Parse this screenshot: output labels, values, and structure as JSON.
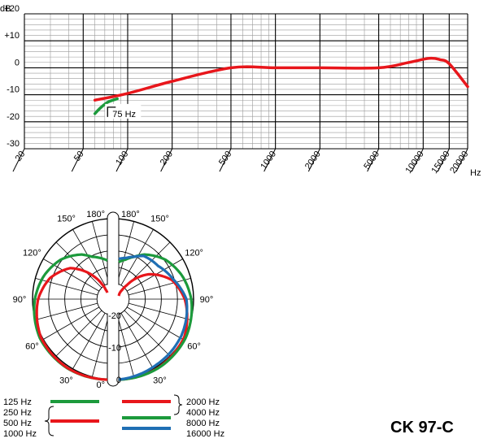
{
  "chart_data": [
    {
      "type": "line",
      "ylabel": "dB",
      "xlabel": "Hz",
      "x_scale": "log",
      "xlim": [
        20,
        20000
      ],
      "ylim": [
        -30,
        20
      ],
      "y_ticks": [
        "+20",
        "+10",
        "0",
        "-10",
        "-20",
        "-30"
      ],
      "y_tick_values": [
        20,
        10,
        0,
        -10,
        -20,
        -30
      ],
      "x_ticks": [
        "20",
        "50",
        "100",
        "200",
        "500",
        "1000",
        "2000",
        "5000",
        "10000",
        "15000",
        "20000"
      ],
      "x_tick_values": [
        20,
        50,
        100,
        200,
        500,
        1000,
        2000,
        5000,
        10000,
        15000,
        20000
      ],
      "grid": true,
      "annotation": "75 Hz",
      "series": [
        {
          "color": "#e8161b",
          "x": [
            60,
            100,
            200,
            500,
            1000,
            2000,
            5000,
            8000,
            11000,
            13000,
            15000,
            20000
          ],
          "y": [
            -12,
            -9.5,
            -5,
            0,
            0,
            0,
            0,
            2,
            3.5,
            3,
            1.5,
            -7
          ]
        },
        {
          "color": "#1c9a3c",
          "x": [
            60,
            65,
            70,
            75,
            85
          ],
          "y": [
            -17,
            -15,
            -13.5,
            -12.5,
            -11.5
          ]
        }
      ]
    },
    {
      "type": "polar",
      "angle_ticks": [
        "180°",
        "150°",
        "120°",
        "90°",
        "60°",
        "30°",
        "0°"
      ],
      "angle_tick_values": [
        180,
        150,
        120,
        90,
        60,
        30,
        0
      ],
      "radial_ticks": [
        "-20",
        "-10",
        "0"
      ],
      "radial_tick_values": [
        -20,
        -10,
        0
      ],
      "rlim": [
        -25,
        0
      ],
      "left_half": {
        "legend": [
          "125 Hz",
          "250 Hz",
          "500 Hz",
          "1000 Hz"
        ],
        "series": [
          {
            "color": "#1c9a3c",
            "angles": [
              0,
              30,
              60,
              90,
              110,
              130,
              150,
              160,
              170,
              180
            ],
            "levels": [
              0,
              -0.2,
              -0.8,
              -2.5,
              -4,
              -6,
              -9,
              -11,
              -12,
              -13
            ]
          },
          {
            "color": "#e8161b",
            "angles": [
              0,
              30,
              60,
              90,
              110,
              130,
              150,
              160,
              170,
              180
            ],
            "levels": [
              0,
              -0.3,
              -1.2,
              -3.5,
              -6,
              -10,
              -17,
              -20,
              -22,
              -23
            ]
          }
        ]
      },
      "right_half": {
        "legend": [
          "2000 Hz",
          "4000 Hz",
          "8000 Hz",
          "16000 Hz"
        ],
        "series": [
          {
            "color": "#e8161b",
            "angles": [
              0,
              30,
              60,
              90,
              110,
              130,
              150,
              160,
              170,
              180
            ],
            "levels": [
              0,
              -0.4,
              -1.5,
              -4.5,
              -7.5,
              -13,
              -20,
              -22,
              -23,
              -24
            ]
          },
          {
            "color": "#1c9a3c",
            "angles": [
              0,
              30,
              60,
              90,
              110,
              130,
              150,
              160,
              170,
              180
            ],
            "levels": [
              0,
              -0.3,
              -1,
              -2.5,
              -4,
              -6,
              -9,
              -11,
              -12.5,
              -13.5
            ]
          },
          {
            "color": "#1f6fb4",
            "angles": [
              0,
              30,
              60,
              90,
              110,
              130,
              150,
              160,
              170,
              180
            ],
            "levels": [
              0,
              -1.5,
              -2.5,
              -4,
              -7,
              -9,
              -9.5,
              -11,
              -12,
              -12.5
            ]
          }
        ]
      }
    }
  ],
  "legend_rows": [
    {
      "left_label": "125 Hz",
      "left_color": "#1c9a3c",
      "right_label": "2000 Hz",
      "right_color": "#e8161b"
    },
    {
      "left_label": "250 Hz",
      "left_color": "",
      "right_label": "4000 Hz",
      "right_color": ""
    },
    {
      "left_label": "500 Hz",
      "left_color": "#e8161b",
      "right_label": "8000 Hz",
      "right_color": "#1c9a3c"
    },
    {
      "left_label": "1000 Hz",
      "left_color": "",
      "right_label": "16000 Hz",
      "right_color": "#1f6fb4"
    }
  ],
  "model_name": "CK 97-C"
}
